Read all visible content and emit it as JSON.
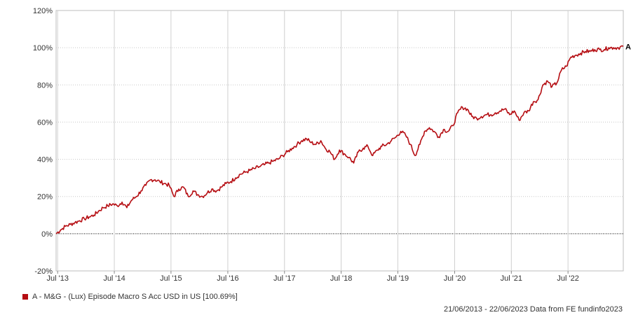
{
  "chart_data": {
    "type": "line",
    "title": "",
    "xlabel": "",
    "ylabel": "",
    "ylim": [
      -20,
      120
    ],
    "y_ticks": [
      -20,
      0,
      20,
      40,
      60,
      80,
      100,
      120
    ],
    "y_tick_labels": [
      "-20%",
      "0%",
      "20%",
      "40%",
      "60%",
      "80%",
      "100%",
      "120%"
    ],
    "x_ticks": [
      {
        "x": "2013-07-01",
        "label": "Jul '13"
      },
      {
        "x": "2014-07-01",
        "label": "Jul '14"
      },
      {
        "x": "2015-07-01",
        "label": "Jul '15"
      },
      {
        "x": "2016-07-01",
        "label": "Jul '16"
      },
      {
        "x": "2017-07-01",
        "label": "Jul '17"
      },
      {
        "x": "2018-07-01",
        "label": "Jul '18"
      },
      {
        "x": "2019-07-01",
        "label": "Jul '19"
      },
      {
        "x": "2020-07-01",
        "label": "Jul '20"
      },
      {
        "x": "2021-07-01",
        "label": "Jul '21"
      },
      {
        "x": "2022-07-01",
        "label": "Jul '22"
      }
    ],
    "xlim": [
      "2013-06-21",
      "2023-06-22"
    ],
    "grid": true,
    "zero_line": true,
    "series": [
      {
        "name": "A - M&G - (Lux) Episode Macro S Acc USD in US [100.69%]",
        "end_label": "A",
        "color": "#b50d12",
        "x": [
          "2013-06-21",
          "2013-07-20",
          "2013-08-20",
          "2013-09-20",
          "2013-10-20",
          "2013-11-20",
          "2013-12-20",
          "2014-01-20",
          "2014-02-20",
          "2014-03-20",
          "2014-04-20",
          "2014-05-20",
          "2014-06-20",
          "2014-07-20",
          "2014-08-20",
          "2014-09-20",
          "2014-10-20",
          "2014-11-20",
          "2014-12-20",
          "2015-01-20",
          "2015-02-20",
          "2015-03-20",
          "2015-04-20",
          "2015-05-20",
          "2015-06-20",
          "2015-07-20",
          "2015-08-20",
          "2015-09-20",
          "2015-10-20",
          "2015-11-20",
          "2015-12-20",
          "2016-01-20",
          "2016-02-20",
          "2016-03-20",
          "2016-04-20",
          "2016-05-20",
          "2016-06-20",
          "2016-07-20",
          "2016-08-20",
          "2016-09-20",
          "2016-10-20",
          "2016-11-20",
          "2016-12-20",
          "2017-01-20",
          "2017-02-20",
          "2017-03-20",
          "2017-04-20",
          "2017-05-20",
          "2017-06-20",
          "2017-07-20",
          "2017-08-20",
          "2017-09-20",
          "2017-10-20",
          "2017-11-20",
          "2017-12-20",
          "2018-01-20",
          "2018-02-20",
          "2018-03-20",
          "2018-04-20",
          "2018-05-20",
          "2018-06-20",
          "2018-07-20",
          "2018-08-20",
          "2018-09-20",
          "2018-10-20",
          "2018-11-20",
          "2018-12-20",
          "2019-01-20",
          "2019-02-20",
          "2019-03-20",
          "2019-04-20",
          "2019-05-20",
          "2019-06-20",
          "2019-07-20",
          "2019-08-20",
          "2019-09-20",
          "2019-10-20",
          "2019-11-20",
          "2019-12-20",
          "2020-01-20",
          "2020-02-20",
          "2020-03-20",
          "2020-04-20",
          "2020-05-20",
          "2020-06-20",
          "2020-07-20",
          "2020-08-20",
          "2020-09-20",
          "2020-10-20",
          "2020-11-20",
          "2020-12-20",
          "2021-01-20",
          "2021-02-20",
          "2021-03-20",
          "2021-04-20",
          "2021-05-20",
          "2021-06-20",
          "2021-07-20",
          "2021-08-20",
          "2021-09-20",
          "2021-10-20",
          "2021-11-20",
          "2021-12-20",
          "2022-01-20",
          "2022-02-20",
          "2022-03-20",
          "2022-04-20",
          "2022-05-20",
          "2022-06-20",
          "2022-07-20",
          "2022-08-20",
          "2022-09-20",
          "2022-10-20",
          "2022-11-20",
          "2022-12-20",
          "2023-01-20",
          "2023-02-20",
          "2023-03-20",
          "2023-04-20",
          "2023-05-20",
          "2023-06-22"
        ],
        "y": [
          0,
          2,
          4,
          5,
          6,
          7,
          8,
          9,
          10,
          12,
          14,
          15,
          16,
          15,
          17,
          14,
          18,
          20,
          23,
          26,
          29,
          29,
          28,
          27,
          26,
          20,
          24,
          25,
          20,
          23,
          21,
          20,
          22,
          24,
          23,
          25,
          27,
          28,
          30,
          32,
          33,
          34,
          35,
          36,
          37,
          38,
          39,
          40,
          42,
          44,
          46,
          48,
          50,
          51,
          49,
          48,
          50,
          46,
          44,
          40,
          45,
          43,
          41,
          38,
          44,
          46,
          47,
          42,
          45,
          47,
          48,
          50,
          52,
          55,
          53,
          48,
          42,
          48,
          55,
          57,
          55,
          52,
          56,
          55,
          58,
          65,
          68,
          67,
          63,
          62,
          63,
          64,
          64,
          65,
          66,
          67,
          64,
          66,
          61,
          65,
          66,
          71,
          72,
          80,
          82,
          79,
          81,
          88,
          90,
          95,
          96,
          97,
          98,
          98,
          99,
          99,
          99,
          100,
          100,
          100,
          100.69
        ]
      }
    ]
  },
  "legend": {
    "swatch_color": "#b50d12",
    "label": "A - M&G - (Lux) Episode Macro S Acc USD in US [100.69%]"
  },
  "source_note": "21/06/2013 - 22/06/2023 Data from FE fundinfo2023"
}
